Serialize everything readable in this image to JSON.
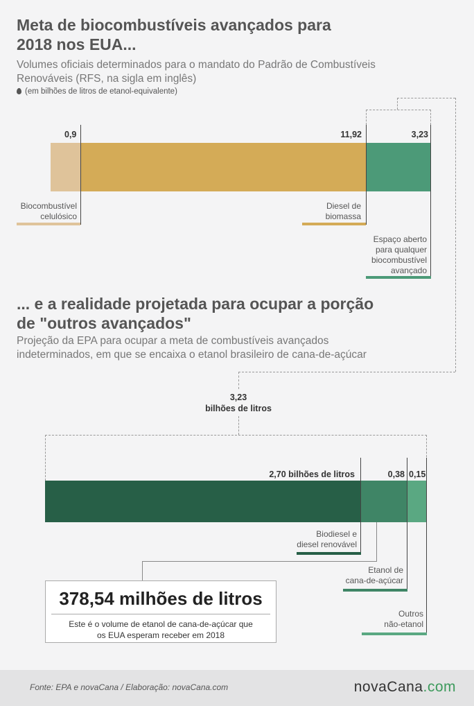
{
  "heading1": {
    "line1": "Meta de biocombustíveis avançados para",
    "line2": "2018 nos EUA..."
  },
  "subtitle1": {
    "line1": "Volumes oficiais determinados para o mandato do Padrão de Combustíveis",
    "line2": "Renováveis (RFS, na sigla em inglês)"
  },
  "unit_note": "(em bilhões de litros de etanol-equivalente)",
  "heading2": {
    "line1": "... e a realidade projetada para ocupar a porção",
    "line2": "de \"outros avançados\""
  },
  "subtitle2": {
    "line1": "Projeção da EPA para ocupar a meta de combustíveis avançados",
    "line2": "indeterminados, em que se encaixa o etanol brasileiro de cana-de-açúcar"
  },
  "connector": {
    "value": "3,23",
    "unit": "bilhões de litros"
  },
  "callout": {
    "headline": "378,54 milhões de litros",
    "line1": "Este é o volume de etanol de cana-de-açúcar que",
    "line2": "os EUA esperam receber em 2018"
  },
  "footer": {
    "source": "Fonte:  EPA e novaCana / Elaboração: novaCana.com",
    "brand_main": "novaCana",
    "brand_suffix": ".com"
  },
  "colors": {
    "cellulosic": "#dfc39a",
    "biomass_diesel": "#d4ab57",
    "open_space": "#4c9a78",
    "biodiesel": "#275f47",
    "sugarcane_ethanol": "#3f8566",
    "other_non_ethanol": "#5aa882"
  },
  "chart_data": [
    {
      "type": "bar",
      "orientation": "horizontal-stacked",
      "segments": [
        {
          "name_lines": [
            "Biocombustível",
            "celulósico"
          ],
          "label": "0,9",
          "value": 0.9
        },
        {
          "name_lines": [
            "Diesel de",
            "biomassa"
          ],
          "label": "11,92",
          "value": 11.92
        },
        {
          "name_lines": [
            "Espaço aberto",
            "para qualquer",
            "biocombustível",
            "avançado"
          ],
          "label": "3,23",
          "value": 3.23
        }
      ]
    },
    {
      "type": "bar",
      "orientation": "horizontal-stacked",
      "segments": [
        {
          "name_lines": [
            "Biodiesel e",
            "diesel renovável"
          ],
          "label": "2,70 bilhões de litros",
          "value": 2.7
        },
        {
          "name_lines": [
            "Etanol de",
            "cana-de-açúcar"
          ],
          "label": "0,38",
          "value": 0.38
        },
        {
          "name_lines": [
            "Outros",
            "não-etanol"
          ],
          "label": "0,15",
          "value": 0.15
        }
      ]
    }
  ]
}
